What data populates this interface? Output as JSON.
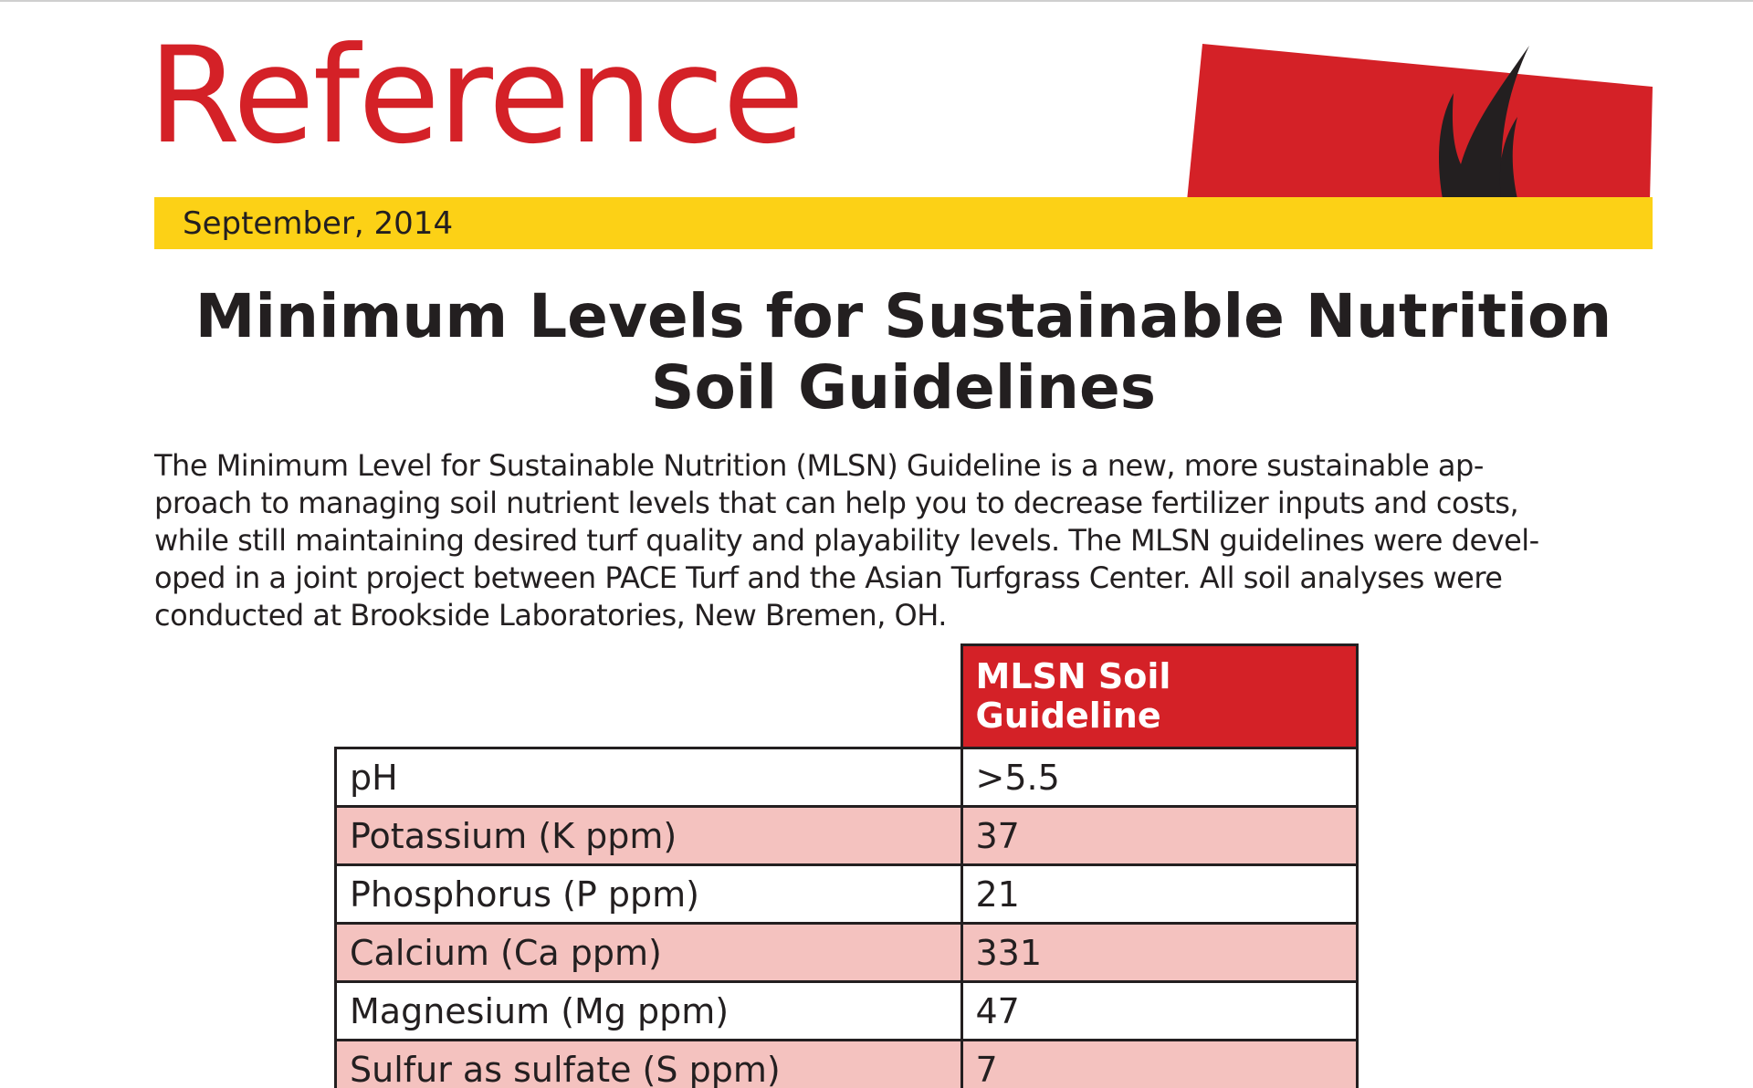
{
  "header": {
    "section_word": "Reference",
    "date": "September, 2014"
  },
  "title": {
    "line1": "Minimum Levels for Sustainable Nutrition",
    "line2": "Soil Guidelines"
  },
  "intro": {
    "lines": [
      "The Minimum Level for Sustainable Nutrition (MLSN) Guideline is a new, more sustainable ap-",
      "proach to managing soil nutrient levels that can help you to decrease fertilizer inputs and costs,",
      "while still maintaining desired turf quality and playability levels. The MLSN guidelines were devel-",
      "oped in a joint project between PACE Turf and the Asian Turfgrass Center. All soil analyses were",
      "conducted at Brookside Laboratories, New Bremen, OH."
    ]
  },
  "table": {
    "header_line1": "MLSN Soil",
    "header_line2": "Guideline",
    "rows": [
      {
        "label": "pH",
        "value": ">5.5"
      },
      {
        "label": "Potassium (K ppm)",
        "value": "37"
      },
      {
        "label": "Phosphorus (P ppm)",
        "value": "21"
      },
      {
        "label": "Calcium (Ca ppm)",
        "value": "331"
      },
      {
        "label": "Magnesium (Mg ppm)",
        "value": "47"
      },
      {
        "label": "Sulfur as sulfate (S ppm)",
        "value": "7"
      }
    ]
  },
  "colors": {
    "brand_red": "#d42127",
    "brand_yellow": "#fcd116",
    "row_shade": "#f4c2bf",
    "text": "#231f20"
  },
  "icons": {
    "banner": "grass-blade-banner-icon"
  }
}
